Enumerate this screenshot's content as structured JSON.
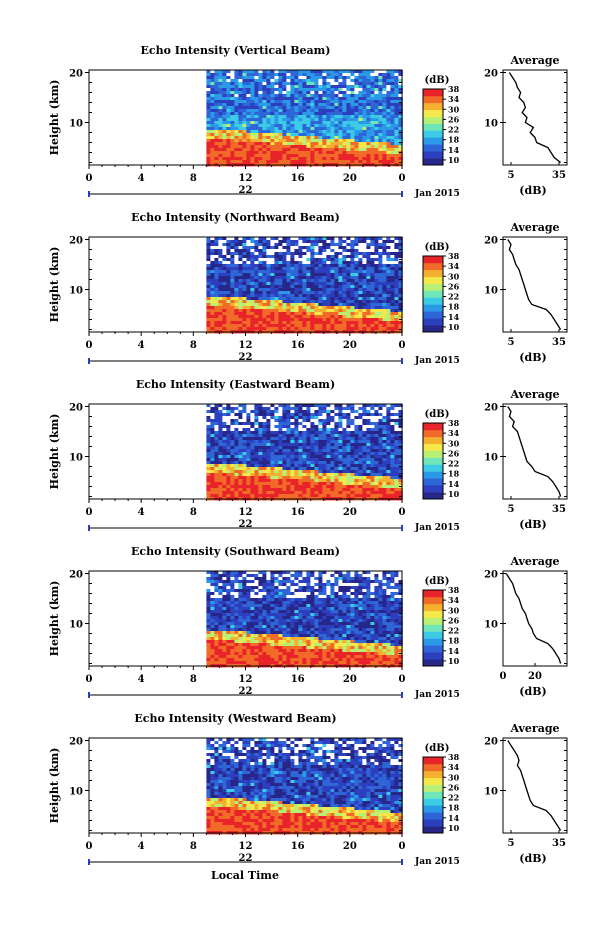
{
  "figure": {
    "panel_titles": [
      "Echo Intensity (Vertical Beam)",
      "Echo Intensity (Northward Beam)",
      "Echo Intensity (Eastward Beam)",
      "Echo Intensity (Southward Beam)",
      "Echo Intensity (Westward Beam)"
    ],
    "ylabel": "Height (km)",
    "xlabel": "Local Time",
    "date_label": "Jan 2015",
    "day_label": "22",
    "colorbar_title": "(dB)",
    "profile_title": "Average",
    "profile_xlabel": "(dB)"
  },
  "chart_data": [
    {
      "type": "heatmap",
      "title": "Echo Intensity (Vertical Beam)",
      "xlabel": "",
      "ylabel": "Height (km)",
      "x_ticks": [
        "0",
        "4",
        "8",
        "12",
        "16",
        "20",
        "0"
      ],
      "xlim": [
        0,
        24
      ],
      "ylim": [
        1.5,
        20.5
      ],
      "y_ticks": [
        "20",
        "10"
      ],
      "data_start_hour": 9,
      "colorbar": {
        "label": "(dB)",
        "range": [
          8,
          38
        ],
        "ticks": [
          "38",
          "34",
          "30",
          "26",
          "22",
          "18",
          "14",
          "10"
        ]
      },
      "colors": [
        "#27278a",
        "#2c3fbf",
        "#2e66d8",
        "#2a99e8",
        "#3ccbe6",
        "#6fe6b8",
        "#b8f075",
        "#f5e84a",
        "#f6b030",
        "#f26a28",
        "#e8232a"
      ],
      "average_profile": {
        "title": "Average",
        "xlabel": "(dB)",
        "x_ticks": [
          "5",
          "35"
        ],
        "xlim": [
          0,
          40
        ],
        "y_ticks": [
          "20",
          "10"
        ],
        "height_km": [
          20,
          19,
          18,
          17,
          16,
          15,
          14,
          13,
          12,
          11,
          10,
          9,
          8,
          7,
          6,
          5,
          4,
          3,
          2
        ],
        "db": [
          4,
          6,
          8,
          9,
          11,
          10,
          13,
          14,
          12,
          15,
          14,
          19,
          17,
          20,
          21,
          28,
          30,
          32,
          36
        ]
      }
    },
    {
      "type": "heatmap",
      "title": "Echo Intensity (Northward Beam)",
      "xlabel": "",
      "ylabel": "Height (km)",
      "x_ticks": [
        "0",
        "4",
        "8",
        "12",
        "16",
        "20",
        "0"
      ],
      "xlim": [
        0,
        24
      ],
      "ylim": [
        1.5,
        20.5
      ],
      "y_ticks": [
        "20",
        "10"
      ],
      "data_start_hour": 9,
      "colorbar": {
        "label": "(dB)",
        "range": [
          8,
          38
        ],
        "ticks": [
          "38",
          "34",
          "30",
          "26",
          "22",
          "18",
          "14",
          "10"
        ]
      },
      "colors": [
        "#27278a",
        "#2c3fbf",
        "#2e66d8",
        "#2a99e8",
        "#3ccbe6",
        "#6fe6b8",
        "#b8f075",
        "#f5e84a",
        "#f6b030",
        "#f26a28",
        "#e8232a"
      ],
      "average_profile": {
        "title": "Average",
        "xlabel": "(dB)",
        "x_ticks": [
          "5",
          "35"
        ],
        "xlim": [
          0,
          40
        ],
        "y_ticks": [
          "20",
          "10"
        ],
        "height_km": [
          20,
          19,
          18,
          17,
          16,
          15,
          14,
          13,
          12,
          11,
          10,
          9,
          8,
          7,
          6,
          5,
          4,
          3,
          2
        ],
        "db": [
          3,
          5,
          4,
          6,
          7,
          8,
          10,
          11,
          12,
          13,
          14,
          15,
          16,
          18,
          27,
          30,
          32,
          34,
          36
        ]
      }
    },
    {
      "type": "heatmap",
      "title": "Echo Intensity (Eastward Beam)",
      "xlabel": "",
      "ylabel": "Height (km)",
      "x_ticks": [
        "0",
        "4",
        "8",
        "12",
        "16",
        "20",
        "0"
      ],
      "xlim": [
        0,
        24
      ],
      "ylim": [
        1.5,
        20.5
      ],
      "y_ticks": [
        "20",
        "10"
      ],
      "data_start_hour": 9,
      "colorbar": {
        "label": "(dB)",
        "range": [
          8,
          38
        ],
        "ticks": [
          "38",
          "34",
          "30",
          "26",
          "22",
          "18",
          "14",
          "10"
        ]
      },
      "colors": [
        "#27278a",
        "#2c3fbf",
        "#2e66d8",
        "#2a99e8",
        "#3ccbe6",
        "#6fe6b8",
        "#b8f075",
        "#f5e84a",
        "#f6b030",
        "#f26a28",
        "#e8232a"
      ],
      "average_profile": {
        "title": "Average",
        "xlabel": "(dB)",
        "x_ticks": [
          "5",
          "35"
        ],
        "xlim": [
          0,
          40
        ],
        "y_ticks": [
          "20",
          "10"
        ],
        "height_km": [
          20,
          19,
          18,
          17,
          16,
          15,
          14,
          13,
          12,
          11,
          10,
          9,
          8,
          7,
          6,
          5,
          4,
          3,
          2
        ],
        "db": [
          3,
          5,
          4,
          7,
          6,
          9,
          10,
          11,
          12,
          13,
          14,
          15,
          18,
          20,
          28,
          31,
          33,
          35,
          36
        ]
      }
    },
    {
      "type": "heatmap",
      "title": "Echo Intensity (Southward Beam)",
      "xlabel": "",
      "ylabel": "Height (km)",
      "x_ticks": [
        "0",
        "4",
        "8",
        "12",
        "16",
        "20",
        "0"
      ],
      "xlim": [
        0,
        24
      ],
      "ylim": [
        1.5,
        20.5
      ],
      "y_ticks": [
        "20",
        "10"
      ],
      "data_start_hour": 9,
      "colorbar": {
        "label": "(dB)",
        "range": [
          8,
          38
        ],
        "ticks": [
          "38",
          "34",
          "30",
          "26",
          "22",
          "18",
          "14",
          "10"
        ]
      },
      "colors": [
        "#27278a",
        "#2c3fbf",
        "#2e66d8",
        "#2a99e8",
        "#3ccbe6",
        "#6fe6b8",
        "#b8f075",
        "#f5e84a",
        "#f6b030",
        "#f26a28",
        "#e8232a"
      ],
      "average_profile": {
        "title": "Average",
        "xlabel": "(dB)",
        "x_ticks": [
          "0",
          "20"
        ],
        "xlim": [
          0,
          40
        ],
        "y_ticks": [
          "20",
          "10"
        ],
        "height_km": [
          20,
          19,
          18,
          17,
          16,
          15,
          14,
          13,
          12,
          11,
          10,
          9,
          8,
          7,
          6,
          5,
          4,
          3,
          2
        ],
        "db": [
          2,
          4,
          6,
          7,
          8,
          10,
          11,
          12,
          14,
          15,
          16,
          18,
          19,
          21,
          28,
          31,
          33,
          35,
          36
        ]
      }
    },
    {
      "type": "heatmap",
      "title": "Echo Intensity (Westward Beam)",
      "xlabel": "Local Time",
      "ylabel": "Height (km)",
      "x_ticks": [
        "0",
        "4",
        "8",
        "12",
        "16",
        "20",
        "0"
      ],
      "xlim": [
        0,
        24
      ],
      "ylim": [
        1.5,
        20.5
      ],
      "y_ticks": [
        "20",
        "10"
      ],
      "data_start_hour": 9,
      "colorbar": {
        "label": "(dB)",
        "range": [
          8,
          38
        ],
        "ticks": [
          "38",
          "34",
          "30",
          "26",
          "22",
          "18",
          "14",
          "10"
        ]
      },
      "colors": [
        "#27278a",
        "#2c3fbf",
        "#2e66d8",
        "#2a99e8",
        "#3ccbe6",
        "#6fe6b8",
        "#b8f075",
        "#f5e84a",
        "#f6b030",
        "#f26a28",
        "#e8232a"
      ],
      "average_profile": {
        "title": "Average",
        "xlabel": "(dB)",
        "x_ticks": [
          "5",
          "35"
        ],
        "xlim": [
          0,
          40
        ],
        "y_ticks": [
          "20",
          "10"
        ],
        "height_km": [
          20,
          19,
          18,
          17,
          16,
          15,
          14,
          13,
          12,
          11,
          10,
          9,
          8,
          7,
          6,
          5,
          4,
          3,
          2
        ],
        "db": [
          3,
          5,
          7,
          9,
          10,
          9,
          11,
          12,
          13,
          14,
          15,
          16,
          17,
          19,
          27,
          30,
          32,
          34,
          36
        ]
      }
    }
  ]
}
